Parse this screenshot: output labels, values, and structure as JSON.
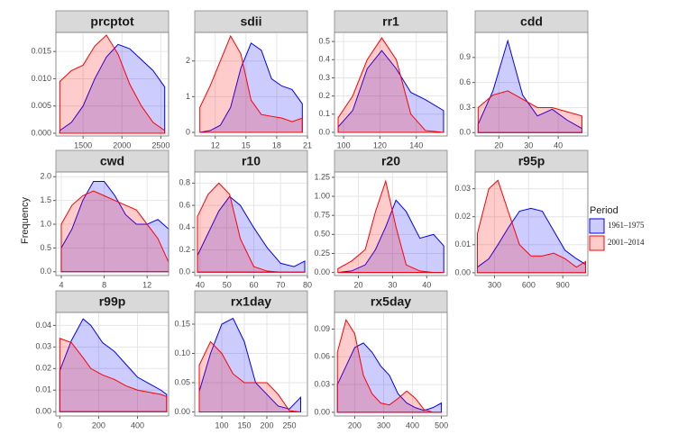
{
  "ylabel": "Frequency",
  "legend": {
    "title": "Period",
    "entries": [
      {
        "name": "1961–1975",
        "color": "#0000ff"
      },
      {
        "name": "2001–2014",
        "color": "#ff0000"
      }
    ]
  },
  "chart_data": [
    {
      "type": "area",
      "title": "prcptot",
      "x": [
        1200,
        1350,
        1500,
        1650,
        1800,
        1950,
        2100,
        2250,
        2400,
        2550
      ],
      "series": [
        {
          "values": [
            0.0005,
            0.002,
            0.005,
            0.01,
            0.014,
            0.0163,
            0.0155,
            0.0135,
            0.0115,
            0.0085
          ]
        },
        {
          "values": [
            0.0095,
            0.0115,
            0.0125,
            0.016,
            0.018,
            0.0145,
            0.009,
            0.005,
            0.002,
            0.0005
          ]
        }
      ],
      "xlim": [
        1150,
        2600
      ],
      "xticks": [
        1500,
        2000,
        2500
      ],
      "ylim": [
        -0.0005,
        0.0185
      ],
      "yticks": [
        {
          "value": 0,
          "label": "0.000"
        },
        {
          "value": 0.005,
          "label": "0.005"
        },
        {
          "value": 0.01,
          "label": "0.010"
        },
        {
          "value": 0.015,
          "label": "0.015"
        }
      ]
    },
    {
      "type": "area",
      "title": "sdii",
      "x": [
        10.5,
        11.5,
        12.5,
        13.5,
        14.5,
        15.5,
        16.5,
        17.5,
        18.5,
        19.5,
        20.5
      ],
      "series": [
        {
          "values": [
            0,
            0.05,
            0.2,
            0.7,
            1.8,
            2.5,
            2.3,
            1.5,
            1.3,
            1.2,
            0.8
          ]
        },
        {
          "values": [
            0.7,
            1.3,
            2.0,
            2.7,
            2.2,
            0.9,
            0.5,
            0.45,
            0.4,
            0.3,
            0.4
          ]
        }
      ],
      "xlim": [
        10,
        21
      ],
      "xticks": [
        12,
        15,
        18,
        21
      ],
      "ylim": [
        -0.1,
        2.8
      ],
      "yticks": [
        0,
        1,
        2
      ]
    },
    {
      "type": "area",
      "title": "rr1",
      "x": [
        97,
        105,
        113,
        121,
        129,
        137,
        145,
        155
      ],
      "series": [
        {
          "values": [
            0.03,
            0.12,
            0.35,
            0.45,
            0.35,
            0.22,
            0.18,
            0.12
          ]
        },
        {
          "values": [
            0.08,
            0.2,
            0.4,
            0.52,
            0.4,
            0.1,
            0.01,
            0
          ]
        }
      ],
      "xlim": [
        95,
        157
      ],
      "xticks": [
        100,
        120,
        140
      ],
      "ylim": [
        -0.02,
        0.55
      ],
      "yticks": [
        {
          "value": 0,
          "label": "0.0"
        },
        0.1,
        0.2,
        0.3,
        0.4,
        0.5
      ]
    },
    {
      "type": "area",
      "title": "cdd",
      "x": [
        13,
        18,
        23,
        28,
        33,
        38,
        43,
        48
      ],
      "series": [
        {
          "values": [
            0.1,
            0.5,
            1.1,
            0.45,
            0.2,
            0.28,
            0.15,
            0.05
          ]
        },
        {
          "values": [
            0.3,
            0.45,
            0.5,
            0.4,
            0.3,
            0.3,
            0.25,
            0.2
          ]
        }
      ],
      "xlim": [
        12,
        50
      ],
      "xticks": [
        20,
        30,
        40
      ],
      "ylim": [
        -0.04,
        1.2
      ],
      "yticks": [
        {
          "value": 0,
          "label": "0.0"
        },
        0.3,
        0.6,
        0.9
      ]
    },
    {
      "type": "area",
      "title": "cwd",
      "x": [
        4,
        5,
        6,
        7,
        8,
        9,
        10,
        11,
        12,
        13,
        14
      ],
      "series": [
        {
          "values": [
            0.5,
            0.9,
            1.5,
            1.9,
            1.9,
            1.6,
            1.2,
            1.0,
            1.0,
            1.1,
            0.9
          ]
        },
        {
          "values": [
            1.0,
            1.4,
            1.6,
            1.7,
            1.6,
            1.5,
            1.4,
            1.3,
            1.0,
            0.7,
            0.2
          ]
        }
      ],
      "xlim": [
        3.5,
        14
      ],
      "xticks": [
        4,
        8,
        12
      ],
      "ylim": [
        -0.08,
        2.1
      ],
      "yticks": [
        {
          "value": 0,
          "label": "0.0"
        },
        0.5,
        {
          "value": 1,
          "label": "1.0"
        },
        1.5,
        {
          "value": 2,
          "label": "2.0"
        }
      ]
    },
    {
      "type": "area",
      "title": "r10",
      "x": [
        39,
        43,
        47,
        51,
        55,
        60,
        65,
        70,
        75,
        79
      ],
      "series": [
        {
          "values": [
            0.15,
            0.35,
            0.55,
            0.68,
            0.6,
            0.4,
            0.22,
            0.08,
            0.05,
            0.1
          ]
        },
        {
          "values": [
            0.5,
            0.7,
            0.8,
            0.7,
            0.3,
            0.05,
            0.01,
            0,
            0,
            0
          ]
        }
      ],
      "xlim": [
        38,
        80
      ],
      "xticks": [
        40,
        50,
        60,
        70,
        80
      ],
      "ylim": [
        -0.03,
        0.9
      ],
      "yticks": [
        {
          "value": 0,
          "label": "0.0"
        },
        0.2,
        0.4,
        0.6,
        0.8
      ]
    },
    {
      "type": "area",
      "title": "r20",
      "x": [
        14,
        18,
        22,
        25,
        28,
        31,
        34,
        38,
        42,
        45
      ],
      "series": [
        {
          "values": [
            0,
            0.02,
            0.1,
            0.3,
            0.6,
            0.95,
            0.8,
            0.45,
            0.5,
            0.35
          ]
        },
        {
          "values": [
            0.05,
            0.15,
            0.3,
            0.8,
            1.2,
            0.6,
            0.1,
            0.02,
            0,
            0
          ]
        }
      ],
      "xlim": [
        13,
        46
      ],
      "xticks": [
        20,
        30,
        40
      ],
      "ylim": [
        -0.04,
        1.32
      ],
      "yticks": [
        {
          "value": 0,
          "label": "0.00"
        },
        0.25,
        {
          "value": 0.5,
          "label": "0.50"
        },
        0.75,
        {
          "value": 1,
          "label": "1.00"
        },
        1.25
      ]
    },
    {
      "type": "area",
      "title": "r95p",
      "x": [
        150,
        250,
        330,
        420,
        520,
        620,
        720,
        820,
        920,
        1020,
        1100
      ],
      "series": [
        {
          "values": [
            0.002,
            0.005,
            0.01,
            0.016,
            0.022,
            0.023,
            0.022,
            0.015,
            0.008,
            0.005,
            0.003
          ]
        },
        {
          "values": [
            0.014,
            0.03,
            0.033,
            0.022,
            0.01,
            0.006,
            0.006,
            0.007,
            0.005,
            0.002,
            0.004
          ]
        }
      ],
      "xlim": [
        130,
        1120
      ],
      "xticks": [
        300,
        600,
        900
      ],
      "ylim": [
        -0.001,
        0.036
      ],
      "yticks": [
        {
          "value": 0,
          "label": "0.00"
        },
        0.01,
        0.02,
        0.03
      ]
    },
    {
      "type": "area",
      "title": "r99p",
      "x": [
        0,
        60,
        120,
        160,
        220,
        280,
        340,
        400,
        460,
        520,
        550
      ],
      "series": [
        {
          "values": [
            0.019,
            0.033,
            0.043,
            0.04,
            0.032,
            0.028,
            0.022,
            0.016,
            0.013,
            0.01,
            0.008
          ]
        },
        {
          "values": [
            0.034,
            0.032,
            0.025,
            0.02,
            0.017,
            0.015,
            0.012,
            0.01,
            0.009,
            0.008,
            0.007
          ]
        }
      ],
      "xlim": [
        -20,
        560
      ],
      "xticks": [
        0,
        200,
        400
      ],
      "ylim": [
        -0.002,
        0.046
      ],
      "yticks": [
        {
          "value": 0,
          "label": "0.00"
        },
        0.01,
        0.02,
        0.03,
        0.04
      ]
    },
    {
      "type": "area",
      "title": "rx1day",
      "x": [
        50,
        75,
        100,
        125,
        150,
        175,
        200,
        225,
        250,
        275
      ],
      "series": [
        {
          "values": [
            0.035,
            0.1,
            0.15,
            0.16,
            0.12,
            0.05,
            0.03,
            0.01,
            0.005,
            0.025
          ]
        },
        {
          "values": [
            0.08,
            0.12,
            0.1,
            0.065,
            0.05,
            0.05,
            0.05,
            0.03,
            0.002,
            0
          ]
        }
      ],
      "xlim": [
        40,
        290
      ],
      "xticks": [
        100,
        150,
        200,
        250
      ],
      "ylim": [
        -0.007,
        0.17
      ],
      "yticks": [
        {
          "value": 0,
          "label": "0.00"
        },
        0.05,
        {
          "value": 0.1,
          "label": "0.10"
        },
        0.15
      ]
    },
    {
      "type": "area",
      "title": "rx5day",
      "x": [
        140,
        170,
        200,
        230,
        260,
        290,
        320,
        350,
        380,
        410,
        440,
        470,
        500
      ],
      "series": [
        {
          "values": [
            0.03,
            0.05,
            0.07,
            0.075,
            0.065,
            0.05,
            0.04,
            0.02,
            0.01,
            0.005,
            0.002,
            0.005,
            0.01
          ]
        },
        {
          "values": [
            0.065,
            0.1,
            0.085,
            0.04,
            0.02,
            0.01,
            0.008,
            0.015,
            0.023,
            0.015,
            0.003,
            0,
            0
          ]
        }
      ],
      "xlim": [
        130,
        520
      ],
      "xticks": [
        200,
        300,
        400,
        500
      ],
      "ylim": [
        -0.004,
        0.108
      ],
      "yticks": [
        {
          "value": 0,
          "label": "0.00"
        },
        0.03,
        0.06,
        0.09
      ]
    }
  ]
}
